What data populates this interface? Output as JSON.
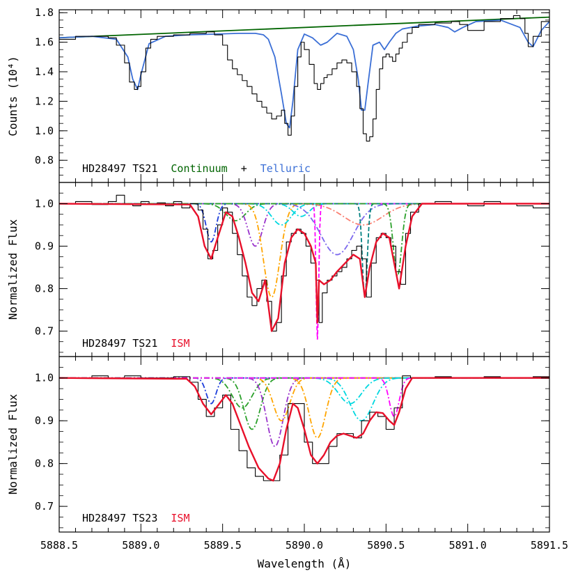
{
  "chart_data": [
    {
      "type": "line",
      "panel": "top",
      "ylabel": "Counts (10⁴)",
      "xlim": [
        5888.5,
        5891.5
      ],
      "ylim": [
        0.65,
        1.82
      ],
      "yticks": [
        "0.8",
        "1.0",
        "1.2",
        "1.4",
        "1.6",
        "1.8"
      ],
      "ytick_values": [
        0.8,
        1.0,
        1.2,
        1.4,
        1.6,
        1.8
      ],
      "annotation": {
        "parts": [
          {
            "text": "HD28497 TS21",
            "color": "#000000"
          },
          {
            "text": "Continuum",
            "color": "#006400"
          },
          {
            "text": "+",
            "color": "#000000"
          },
          {
            "text": "Telluric",
            "color": "#3b6fd6"
          }
        ]
      },
      "series": [
        {
          "name": "Continuum",
          "style": "line",
          "color": "#006400",
          "x": [
            5888.5,
            5891.5
          ],
          "values": [
            1.63,
            1.77
          ]
        },
        {
          "name": "Telluric",
          "style": "line",
          "color": "#3b6fd6",
          "x": [
            5888.5,
            5888.7,
            5888.85,
            5888.92,
            5888.95,
            5888.98,
            5889.0,
            5889.05,
            5889.15,
            5889.3,
            5889.45,
            5889.6,
            5889.7,
            5889.75,
            5889.78,
            5889.82,
            5889.86,
            5889.89,
            5889.91,
            5889.93,
            5889.96,
            5890.0,
            5890.05,
            5890.1,
            5890.14,
            5890.2,
            5890.26,
            5890.3,
            5890.33,
            5890.35,
            5890.37,
            5890.39,
            5890.42,
            5890.46,
            5890.49,
            5890.52,
            5890.56,
            5890.6,
            5890.7,
            5890.8,
            5890.88,
            5890.92,
            5890.97,
            5891.05,
            5891.2,
            5891.32,
            5891.37,
            5891.4,
            5891.45,
            5891.5
          ],
          "values": [
            1.63,
            1.64,
            1.62,
            1.5,
            1.35,
            1.28,
            1.38,
            1.59,
            1.64,
            1.65,
            1.655,
            1.66,
            1.66,
            1.65,
            1.62,
            1.5,
            1.25,
            1.05,
            1.02,
            1.2,
            1.55,
            1.655,
            1.63,
            1.58,
            1.6,
            1.66,
            1.64,
            1.55,
            1.35,
            1.14,
            1.14,
            1.32,
            1.58,
            1.6,
            1.55,
            1.6,
            1.66,
            1.69,
            1.71,
            1.72,
            1.7,
            1.67,
            1.7,
            1.74,
            1.75,
            1.7,
            1.6,
            1.57,
            1.68,
            1.74
          ]
        },
        {
          "name": "Observed",
          "style": "steps",
          "color": "#000000",
          "x": [
            5888.5,
            5888.6,
            5888.7,
            5888.8,
            5888.85,
            5888.9,
            5888.93,
            5888.96,
            5888.98,
            5889.0,
            5889.03,
            5889.06,
            5889.1,
            5889.2,
            5889.3,
            5889.4,
            5889.45,
            5889.5,
            5889.53,
            5889.56,
            5889.59,
            5889.62,
            5889.65,
            5889.68,
            5889.71,
            5889.74,
            5889.77,
            5889.8,
            5889.83,
            5889.86,
            5889.88,
            5889.9,
            5889.92,
            5889.94,
            5889.96,
            5889.98,
            5890.0,
            5890.03,
            5890.06,
            5890.08,
            5890.1,
            5890.12,
            5890.14,
            5890.17,
            5890.2,
            5890.23,
            5890.26,
            5890.29,
            5890.32,
            5890.34,
            5890.36,
            5890.38,
            5890.4,
            5890.42,
            5890.44,
            5890.46,
            5890.48,
            5890.5,
            5890.52,
            5890.54,
            5890.56,
            5890.58,
            5890.6,
            5890.63,
            5890.66,
            5890.7,
            5890.8,
            5890.9,
            5890.95,
            5891.0,
            5891.1,
            5891.2,
            5891.28,
            5891.32,
            5891.35,
            5891.37,
            5891.4,
            5891.45,
            5891.5
          ],
          "values": [
            1.62,
            1.64,
            1.64,
            1.63,
            1.58,
            1.46,
            1.33,
            1.28,
            1.3,
            1.4,
            1.56,
            1.62,
            1.64,
            1.65,
            1.66,
            1.67,
            1.65,
            1.58,
            1.48,
            1.42,
            1.38,
            1.34,
            1.3,
            1.25,
            1.2,
            1.16,
            1.12,
            1.08,
            1.1,
            1.14,
            1.05,
            0.97,
            1.1,
            1.3,
            1.5,
            1.6,
            1.55,
            1.45,
            1.32,
            1.28,
            1.32,
            1.36,
            1.38,
            1.42,
            1.46,
            1.48,
            1.46,
            1.4,
            1.3,
            1.15,
            0.98,
            0.93,
            0.96,
            1.08,
            1.28,
            1.42,
            1.5,
            1.52,
            1.5,
            1.47,
            1.52,
            1.56,
            1.6,
            1.66,
            1.7,
            1.72,
            1.73,
            1.74,
            1.72,
            1.68,
            1.74,
            1.76,
            1.78,
            1.76,
            1.66,
            1.57,
            1.64,
            1.74,
            1.76
          ]
        }
      ]
    },
    {
      "type": "line",
      "panel": "middle",
      "ylabel": "Normalized Flux",
      "xlim": [
        5888.5,
        5891.5
      ],
      "ylim": [
        0.64,
        1.05
      ],
      "yticks": [
        "0.7",
        "0.8",
        "0.9",
        "1.0"
      ],
      "ytick_values": [
        0.7,
        0.8,
        0.9,
        1.0
      ],
      "annotation": {
        "parts": [
          {
            "text": "HD28497 TS21",
            "color": "#000000"
          },
          {
            "text": "ISM",
            "color": "#e8102a"
          }
        ]
      },
      "components": [
        {
          "center": 5889.43,
          "depth": 0.09,
          "width": 0.03,
          "color": "#1c3ddb",
          "dash": "8,3,2,3"
        },
        {
          "center": 5889.58,
          "depth": 0.04,
          "width": 0.06,
          "color": "#2aa02a",
          "dash": "8,3,2,3"
        },
        {
          "center": 5889.7,
          "depth": 0.1,
          "width": 0.045,
          "color": "#9932cc",
          "dash": "8,3,2,3,2,3"
        },
        {
          "center": 5889.8,
          "depth": 0.22,
          "width": 0.05,
          "color": "#ffa500",
          "dash": "8,3,2,3"
        },
        {
          "center": 5889.86,
          "depth": 0.05,
          "width": 0.06,
          "color": "#00d8e0",
          "dash": "8,3,2,3"
        },
        {
          "center": 5889.98,
          "depth": 0.03,
          "width": 0.05,
          "color": "#00d8e0",
          "dash": "8,3,2,3"
        },
        {
          "center": 5890.08,
          "depth": 0.32,
          "width": 0.008,
          "color": "#ff00ff",
          "dash": "6,3"
        },
        {
          "center": 5890.2,
          "depth": 0.12,
          "width": 0.1,
          "color": "#7b68ee",
          "dash": "8,3,2,3"
        },
        {
          "center": 5890.36,
          "depth": 0.05,
          "width": 0.12,
          "color": "#fa8072",
          "dash": "8,3,2,3"
        },
        {
          "center": 5890.37,
          "depth": 0.22,
          "width": 0.015,
          "color": "#008080",
          "dash": "6,3"
        },
        {
          "center": 5890.57,
          "depth": 0.17,
          "width": 0.025,
          "color": "#2aa02a",
          "dash": "8,3,2,3"
        }
      ],
      "series": [
        {
          "name": "Observed",
          "style": "steps",
          "color": "#000000",
          "x": [
            5888.5,
            5888.6,
            5888.7,
            5888.8,
            5888.85,
            5888.9,
            5888.95,
            5889.0,
            5889.05,
            5889.1,
            5889.15,
            5889.2,
            5889.25,
            5889.3,
            5889.35,
            5889.38,
            5889.41,
            5889.44,
            5889.47,
            5889.5,
            5889.53,
            5889.56,
            5889.59,
            5889.62,
            5889.65,
            5889.68,
            5889.71,
            5889.74,
            5889.77,
            5889.8,
            5889.83,
            5889.86,
            5889.89,
            5889.92,
            5889.95,
            5889.98,
            5890.01,
            5890.04,
            5890.07,
            5890.09,
            5890.11,
            5890.14,
            5890.17,
            5890.2,
            5890.23,
            5890.26,
            5890.29,
            5890.32,
            5890.35,
            5890.38,
            5890.41,
            5890.44,
            5890.47,
            5890.5,
            5890.53,
            5890.56,
            5890.59,
            5890.62,
            5890.65,
            5890.7,
            5890.8,
            5890.9,
            5891.0,
            5891.1,
            5891.2,
            5891.3,
            5891.4,
            5891.5
          ],
          "values": [
            1.0,
            1.005,
            0.998,
            1.005,
            1.02,
            1.0,
            0.995,
            1.005,
            0.998,
            1.002,
            0.995,
            1.005,
            0.99,
            1.0,
            0.985,
            0.94,
            0.87,
            0.89,
            0.95,
            0.99,
            0.98,
            0.93,
            0.88,
            0.83,
            0.78,
            0.76,
            0.8,
            0.82,
            0.77,
            0.7,
            0.72,
            0.83,
            0.91,
            0.93,
            0.94,
            0.93,
            0.9,
            0.86,
            0.82,
            0.72,
            0.79,
            0.82,
            0.83,
            0.84,
            0.85,
            0.87,
            0.89,
            0.9,
            0.87,
            0.78,
            0.86,
            0.92,
            0.93,
            0.92,
            0.9,
            0.84,
            0.81,
            0.93,
            0.98,
            1.0,
            1.005,
            1.0,
            0.995,
            1.005,
            1.0,
            0.995,
            0.99,
            1.0
          ]
        },
        {
          "name": "Fit",
          "style": "line",
          "color": "#e8102a",
          "x": [
            5888.5,
            5889.3,
            5889.35,
            5889.39,
            5889.43,
            5889.47,
            5889.52,
            5889.56,
            5889.6,
            5889.64,
            5889.68,
            5889.72,
            5889.76,
            5889.8,
            5889.84,
            5889.88,
            5889.92,
            5889.96,
            5890.0,
            5890.04,
            5890.07,
            5890.08,
            5890.09,
            5890.12,
            5890.16,
            5890.2,
            5890.25,
            5890.3,
            5890.34,
            5890.37,
            5890.4,
            5890.44,
            5890.48,
            5890.52,
            5890.55,
            5890.58,
            5890.62,
            5890.66,
            5890.72,
            5891.5
          ],
          "values": [
            1.0,
            0.998,
            0.97,
            0.9,
            0.87,
            0.92,
            0.98,
            0.97,
            0.92,
            0.86,
            0.79,
            0.77,
            0.82,
            0.7,
            0.73,
            0.86,
            0.92,
            0.94,
            0.93,
            0.9,
            0.86,
            0.72,
            0.82,
            0.81,
            0.82,
            0.84,
            0.86,
            0.88,
            0.87,
            0.78,
            0.85,
            0.91,
            0.93,
            0.92,
            0.86,
            0.8,
            0.9,
            0.97,
            1.0,
            1.0
          ]
        }
      ]
    },
    {
      "type": "line",
      "panel": "bottom",
      "ylabel": "Normalized Flux",
      "xlabel": "Wavelength (Å)",
      "xlim": [
        5888.5,
        5891.5
      ],
      "ylim": [
        0.64,
        1.05
      ],
      "yticks": [
        "0.7",
        "0.8",
        "0.9",
        "1.0"
      ],
      "ytick_values": [
        0.7,
        0.8,
        0.9,
        1.0
      ],
      "xticks": [
        "5888.5",
        "5889.0",
        "5889.5",
        "5890.0",
        "5890.5",
        "5891.0",
        "5891.5"
      ],
      "xtick_values": [
        5888.5,
        5889.0,
        5889.5,
        5890.0,
        5890.5,
        5891.0,
        5891.5
      ],
      "annotation": {
        "parts": [
          {
            "text": "HD28497 TS23",
            "color": "#000000"
          },
          {
            "text": "ISM",
            "color": "#e8102a"
          }
        ]
      },
      "components": [
        {
          "center": 5889.43,
          "depth": 0.06,
          "width": 0.03,
          "color": "#1c3ddb",
          "dash": "8,3,2,3"
        },
        {
          "center": 5889.62,
          "depth": 0.07,
          "width": 0.06,
          "color": "#2aa02a",
          "dash": "8,3,2,3"
        },
        {
          "center": 5889.68,
          "depth": 0.12,
          "width": 0.05,
          "color": "#2aa02a",
          "dash": "8,3,2,3"
        },
        {
          "center": 5889.82,
          "depth": 0.16,
          "width": 0.05,
          "color": "#9932cc",
          "dash": "8,3,2,3"
        },
        {
          "center": 5889.86,
          "depth": 0.1,
          "width": 0.05,
          "color": "#ffa500",
          "dash": "8,3,2,3"
        },
        {
          "center": 5890.08,
          "depth": 0.14,
          "width": 0.05,
          "color": "#ffa500",
          "dash": "8,3,2,3"
        },
        {
          "center": 5890.28,
          "depth": 0.06,
          "width": 0.07,
          "color": "#00d8e0",
          "dash": "8,3,2,3"
        },
        {
          "center": 5890.35,
          "depth": 0.1,
          "width": 0.07,
          "color": "#00d8e0",
          "dash": "8,3,2,3"
        },
        {
          "center": 5890.55,
          "depth": 0.09,
          "width": 0.03,
          "color": "#ff00ff",
          "dash": "8,3,2,3"
        }
      ],
      "series": [
        {
          "name": "Observed",
          "style": "steps",
          "color": "#000000",
          "x": [
            5888.5,
            5888.6,
            5888.7,
            5888.8,
            5888.9,
            5889.0,
            5889.1,
            5889.2,
            5889.3,
            5889.35,
            5889.4,
            5889.45,
            5889.5,
            5889.55,
            5889.6,
            5889.65,
            5889.7,
            5889.75,
            5889.8,
            5889.85,
            5889.9,
            5889.95,
            5890.0,
            5890.05,
            5890.1,
            5890.15,
            5890.2,
            5890.25,
            5890.3,
            5890.35,
            5890.4,
            5890.45,
            5890.5,
            5890.55,
            5890.6,
            5890.65,
            5890.7,
            5890.8,
            5890.9,
            5891.0,
            5891.1,
            5891.2,
            5891.3,
            5891.4,
            5891.5
          ],
          "values": [
            1.0,
            1.0,
            1.005,
            1.0,
            1.005,
            1.0,
            1.0,
            1.003,
            0.99,
            0.95,
            0.91,
            0.93,
            0.96,
            0.88,
            0.83,
            0.79,
            0.77,
            0.76,
            0.76,
            0.82,
            0.94,
            0.94,
            0.85,
            0.8,
            0.8,
            0.84,
            0.87,
            0.87,
            0.86,
            0.9,
            0.92,
            0.91,
            0.88,
            0.93,
            1.005,
            1.0,
            1.0,
            1.003,
            1.0,
            1.0,
            1.003,
            1.0,
            1.0,
            1.003,
            1.0
          ]
        },
        {
          "name": "Fit",
          "style": "line",
          "color": "#e8102a",
          "x": [
            5888.5,
            5889.28,
            5889.33,
            5889.38,
            5889.43,
            5889.48,
            5889.52,
            5889.56,
            5889.6,
            5889.66,
            5889.72,
            5889.78,
            5889.81,
            5889.85,
            5889.89,
            5889.93,
            5889.96,
            5890.0,
            5890.04,
            5890.08,
            5890.12,
            5890.16,
            5890.2,
            5890.24,
            5890.28,
            5890.32,
            5890.36,
            5890.4,
            5890.44,
            5890.48,
            5890.52,
            5890.55,
            5890.58,
            5890.62,
            5890.66,
            5891.5
          ],
          "values": [
            1.0,
            0.998,
            0.98,
            0.94,
            0.915,
            0.94,
            0.96,
            0.94,
            0.9,
            0.84,
            0.79,
            0.765,
            0.76,
            0.8,
            0.88,
            0.94,
            0.93,
            0.88,
            0.82,
            0.8,
            0.82,
            0.85,
            0.865,
            0.87,
            0.865,
            0.86,
            0.87,
            0.9,
            0.92,
            0.918,
            0.9,
            0.89,
            0.92,
            0.975,
            1.0,
            1.0
          ]
        }
      ]
    }
  ]
}
